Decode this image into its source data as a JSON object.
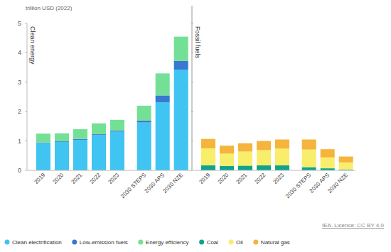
{
  "chart_data": [
    {
      "type": "bar",
      "title": "Clean energy",
      "y_label": "trillion USD (2022)",
      "categories": [
        "2019",
        "2020",
        "2021",
        "2022",
        "2023",
        "2030 STEPS",
        "2030 APS",
        "2030 NZE"
      ],
      "series": [
        {
          "name": "Clean electrification",
          "color": "#40c4f2",
          "values": [
            0.93,
            0.97,
            1.04,
            1.2,
            1.32,
            1.63,
            2.32,
            3.43
          ]
        },
        {
          "name": "Low-emission fuels",
          "color": "#3a78d0",
          "values": [
            0.02,
            0.02,
            0.03,
            0.03,
            0.04,
            0.07,
            0.23,
            0.3
          ]
        },
        {
          "name": "Energy efficiency",
          "color": "#74e096",
          "values": [
            0.3,
            0.27,
            0.33,
            0.37,
            0.36,
            0.5,
            0.75,
            0.82
          ]
        }
      ],
      "ylim": [
        0,
        5
      ],
      "yticks": [
        0,
        1,
        2,
        3,
        4,
        5
      ],
      "stacked": true,
      "grid": false,
      "legend": "bottom"
    },
    {
      "type": "bar",
      "title": "Fossil fuels",
      "categories": [
        "2019",
        "2020",
        "2021",
        "2022",
        "2023",
        "2030 STEPS",
        "2030 APS",
        "2030 NZE"
      ],
      "series": [
        {
          "name": "Coal",
          "color": "#10a38c",
          "values": [
            0.17,
            0.15,
            0.16,
            0.17,
            0.17,
            0.11,
            0.07,
            0.03
          ]
        },
        {
          "name": "Oil",
          "color": "#f8ee6c",
          "values": [
            0.58,
            0.42,
            0.48,
            0.52,
            0.57,
            0.6,
            0.37,
            0.24
          ]
        },
        {
          "name": "Natural gas",
          "color": "#f5b43c",
          "values": [
            0.32,
            0.27,
            0.28,
            0.31,
            0.31,
            0.34,
            0.28,
            0.2
          ]
        }
      ],
      "ylim": [
        0,
        5
      ],
      "yticks": [
        0,
        1,
        2,
        3,
        4,
        5
      ],
      "stacked": true,
      "grid": false,
      "legend": "bottom",
      "tick_labels": "x",
      "annotations": [
        "IEA. Licence: CC BY 4.0"
      ]
    }
  ]
}
